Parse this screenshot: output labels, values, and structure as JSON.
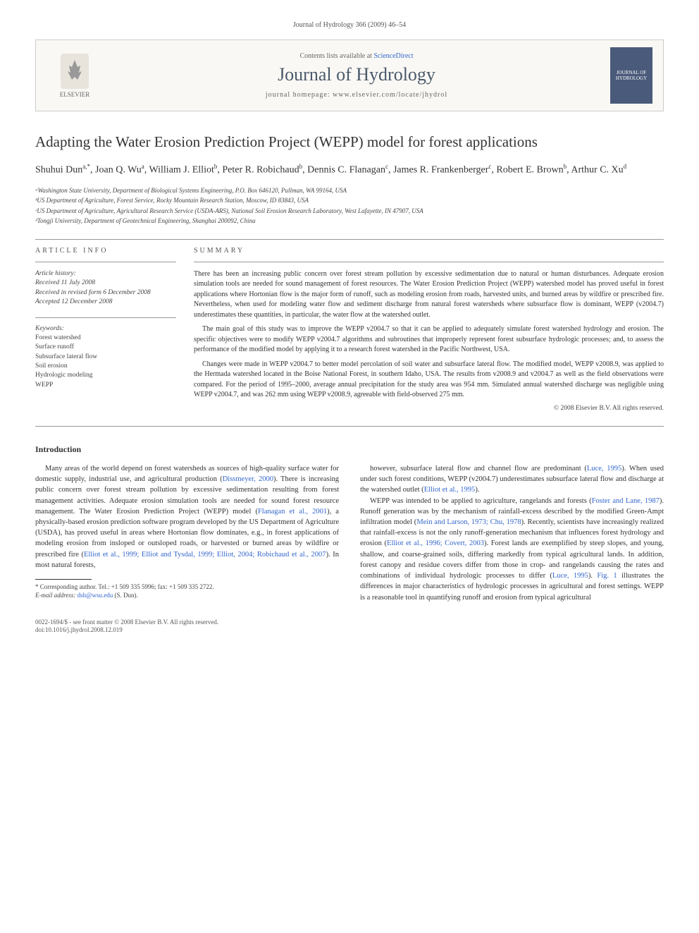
{
  "page_header": "Journal of Hydrology 366 (2009) 46–54",
  "banner": {
    "contents_prefix": "Contents lists available at ",
    "contents_link": "ScienceDirect",
    "journal_name": "Journal of Hydrology",
    "homepage_prefix": "journal homepage: ",
    "homepage_url": "www.elsevier.com/locate/jhydrol",
    "publisher": "ELSEVIER",
    "cover_text": "JOURNAL OF HYDROLOGY"
  },
  "title": "Adapting the Water Erosion Prediction Project (WEPP) model for forest applications",
  "authors_html": "Shuhui Dun<sup>a,*</sup>, Joan Q. Wu<sup>a</sup>, William J. Elliot<sup>b</sup>, Peter R. Robichaud<sup>b</sup>, Dennis C. Flanagan<sup>c</sup>, James R. Frankenberger<sup>c</sup>, Robert E. Brown<sup>b</sup>, Arthur C. Xu<sup>d</sup>",
  "affiliations": [
    "ᵃWashington State University, Department of Biological Systems Engineering, P.O. Box 646120, Pullman, WA 99164, USA",
    "ᵇUS Department of Agriculture, Forest Service, Rocky Mountain Research Station, Moscow, ID 83843, USA",
    "ᶜUS Department of Agriculture, Agricultural Research Service (USDA-ARS), National Soil Erosion Research Laboratory, West Lafayette, IN 47907, USA",
    "ᵈTongji University, Department of Geotechnical Engineering, Shanghai 200092, China"
  ],
  "info": {
    "label": "ARTICLE INFO",
    "history_title": "Article history:",
    "history": [
      "Received 11 July 2008",
      "Received in revised form 6 December 2008",
      "Accepted 12 December 2008"
    ],
    "keywords_title": "Keywords:",
    "keywords": [
      "Forest watershed",
      "Surface runoff",
      "Subsurface lateral flow",
      "Soil erosion",
      "Hydrologic modeling",
      "WEPP"
    ]
  },
  "summary": {
    "label": "SUMMARY",
    "paragraphs": [
      "There has been an increasing public concern over forest stream pollution by excessive sedimentation due to natural or human disturbances. Adequate erosion simulation tools are needed for sound management of forest resources. The Water Erosion Prediction Project (WEPP) watershed model has proved useful in forest applications where Hortonian flow is the major form of runoff, such as modeling erosion from roads, harvested units, and burned areas by wildfire or prescribed fire. Nevertheless, when used for modeling water flow and sediment discharge from natural forest watersheds where subsurface flow is dominant, WEPP (v2004.7) underestimates these quantities, in particular, the water flow at the watershed outlet.",
      "The main goal of this study was to improve the WEPP v2004.7 so that it can be applied to adequately simulate forest watershed hydrology and erosion. The specific objectives were to modify WEPP v2004.7 algorithms and subroutines that improperly represent forest subsurface hydrologic processes; and, to assess the performance of the modified model by applying it to a research forest watershed in the Pacific Northwest, USA.",
      "Changes were made in WEPP v2004.7 to better model percolation of soil water and subsurface lateral flow. The modified model, WEPP v2008.9, was applied to the Hermada watershed located in the Boise National Forest, in southern Idaho, USA. The results from v2008.9 and v2004.7 as well as the field observations were compared. For the period of 1995–2000, average annual precipitation for the study area was 954 mm. Simulated annual watershed discharge was negligible using WEPP v2004.7, and was 262 mm using WEPP v2008.9, agreeable with field-observed 275 mm."
    ],
    "copyright": "© 2008 Elsevier B.V. All rights reserved."
  },
  "intro": {
    "heading": "Introduction",
    "col1": "Many areas of the world depend on forest watersheds as sources of high-quality surface water for domestic supply, industrial use, and agricultural production (<a>Dissmeyer, 2000</a>). There is increasing public concern over forest stream pollution by excessive sedimentation resulting from forest management activities. Adequate erosion simulation tools are needed for sound forest resource management. The Water Erosion Prediction Project (WEPP) model (<a>Flanagan et al., 2001</a>), a physically-based erosion prediction software program developed by the US Department of Agriculture (USDA), has proved useful in areas where Hortonian flow dominates, e.g., in forest applications of modeling erosion from insloped or outsloped roads, or harvested or burned areas by wildfire or prescribed fire (<a>Elliot et al., 1999; Elliot and Tysdal, 1999; Elliot, 2004; Robichaud et al., 2007</a>). In most natural forests,",
    "col2": "however, subsurface lateral flow and channel flow are predominant (<a>Luce, 1995</a>). When used under such forest conditions, WEPP (v2004.7) underestimates subsurface lateral flow and discharge at the watershed outlet (<a>Elliot et al., 1995</a>).<br><span style='display:inline-block;width:14px'></span>WEPP was intended to be applied to agriculture, rangelands and forests (<a>Foster and Lane, 1987</a>). Runoff generation was by the mechanism of rainfall-excess described by the modified Green-Ampt infiltration model (<a>Mein and Larson, 1973; Chu, 1978</a>). Recently, scientists have increasingly realized that rainfall-excess is not the only runoff-generation mechanism that influences forest hydrology and erosion (<a>Elliot et al., 1996; Covert, 2003</a>). Forest lands are exemplified by steep slopes, and young, shallow, and coarse-grained soils, differing markedly from typical agricultural lands. In addition, forest canopy and residue covers differ from those in crop- and rangelands causing the rates and combinations of individual hydrologic processes to differ (<a>Luce, 1995</a>). <a>Fig. 1</a> illustrates the differences in major characteristics of hydrologic processes in agricultural and forest settings. WEPP is a reasonable tool in quantifying runoff and erosion from typical agricultural"
  },
  "footnote": {
    "corr": "* Corresponding author. Tel.: +1 509 335 5996; fax: +1 509 335 2722.",
    "email_label": "E-mail address:",
    "email": "dsh@wsu.edu",
    "email_name": "(S. Dun)."
  },
  "footer": {
    "issn": "0022-1694/$ - see front matter © 2008 Elsevier B.V. All rights reserved.",
    "doi": "doi:10.1016/j.jhydrol.2008.12.019"
  },
  "colors": {
    "link": "#3366cc",
    "text": "#333333",
    "muted": "#666666",
    "border": "#cccccc",
    "banner_bg": "#f9f8f5",
    "cover_bg": "#4a5a7a"
  }
}
